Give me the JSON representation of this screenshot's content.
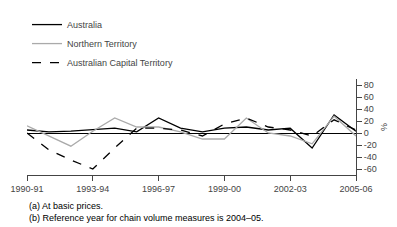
{
  "chart_data": {
    "type": "line",
    "categories": [
      "1990-91",
      null,
      null,
      "1993-94",
      null,
      null,
      "1996-97",
      null,
      null,
      "1999-00",
      null,
      null,
      "2002-03",
      null,
      null,
      "2005-06"
    ],
    "series": [
      {
        "name": "Australia",
        "color": "#000000",
        "line_style": "solid",
        "values": [
          5,
          2,
          3,
          5,
          8,
          2,
          25,
          8,
          2,
          8,
          10,
          5,
          8,
          -25,
          30,
          3
        ]
      },
      {
        "name": "Northern Territory",
        "color": "#aaaaaa",
        "line_style": "solid",
        "values": [
          12,
          -5,
          -22,
          3,
          25,
          10,
          10,
          2,
          -10,
          -10,
          25,
          0,
          -5,
          -18,
          28,
          -5
        ]
      },
      {
        "name": "Australian Capital Territory",
        "color": "#000000",
        "line_style": "dashed",
        "values": [
          0,
          -28,
          -45,
          -60,
          -25,
          8,
          8,
          5,
          -5,
          15,
          25,
          10,
          5,
          -5,
          22,
          5
        ]
      }
    ],
    "ylabel": "%",
    "ylim": [
      -70,
      90
    ],
    "yticks": [
      -60,
      -40,
      -20,
      0,
      20,
      40,
      60,
      80
    ],
    "grid": false,
    "legend": "upper left",
    "annotations": [
      "(a) At basic prices.",
      "(b) Reference year for chain volume measures is 2004–05."
    ]
  }
}
